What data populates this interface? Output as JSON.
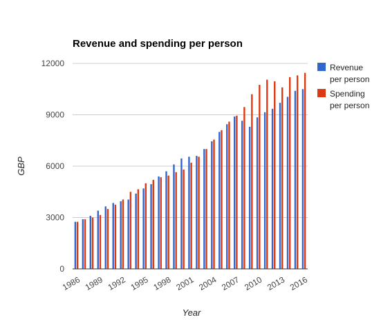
{
  "chart_data": {
    "type": "bar",
    "title": "Revenue and spending per person",
    "xlabel": "Year",
    "ylabel": "GBP",
    "ylim": [
      0,
      12000
    ],
    "yticks": [
      0,
      3000,
      6000,
      9000,
      12000
    ],
    "ytick_labels": [
      "0",
      "3000",
      "6000",
      "9000",
      "12000"
    ],
    "grid": true,
    "legend_position": "right",
    "categories": [
      "1986",
      "1987",
      "1988",
      "1989",
      "1990",
      "1991",
      "1992",
      "1993",
      "1994",
      "1995",
      "1996",
      "1997",
      "1998",
      "1999",
      "2000",
      "2001",
      "2002",
      "2003",
      "2004",
      "2005",
      "2006",
      "2007",
      "2008",
      "2009",
      "2010",
      "2011",
      "2012",
      "2013",
      "2014",
      "2015",
      "2016"
    ],
    "xtick_labels": [
      "1986",
      "",
      "",
      "1989",
      "",
      "",
      "1992",
      "",
      "",
      "1995",
      "",
      "",
      "1998",
      "",
      "",
      "2001",
      "",
      "",
      "2004",
      "",
      "",
      "2007",
      "",
      "",
      "2010",
      "",
      "",
      "2013",
      "",
      "",
      "2016"
    ],
    "series": [
      {
        "name": "Revenue per person",
        "legend_lines": [
          "Revenue",
          "per person"
        ],
        "color": "#3366cc",
        "values": [
          2750,
          2900,
          3100,
          3400,
          3650,
          3850,
          3950,
          4050,
          4400,
          4700,
          4950,
          5400,
          5700,
          6100,
          6450,
          6550,
          6600,
          7000,
          7450,
          8000,
          8450,
          8900,
          8650,
          8300,
          8850,
          9150,
          9350,
          9700,
          10050,
          10400,
          10500
        ]
      },
      {
        "name": "Spending per person",
        "legend_lines": [
          "Spending",
          "per person"
        ],
        "color": "#dc3912",
        "values": [
          2750,
          2900,
          3000,
          3150,
          3500,
          3750,
          4050,
          4500,
          4650,
          5000,
          5200,
          5350,
          5450,
          5650,
          5800,
          6200,
          6550,
          7000,
          7550,
          8100,
          8600,
          8950,
          9450,
          10200,
          10750,
          11050,
          10950,
          10600,
          11200,
          11300,
          11450
        ]
      }
    ]
  }
}
